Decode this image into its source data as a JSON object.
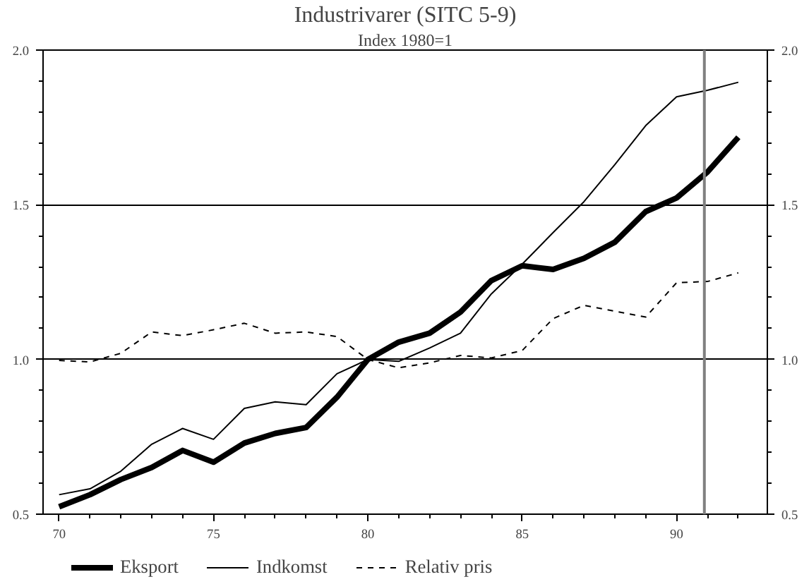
{
  "chart_data": {
    "type": "line",
    "title": "Industrivarer (SITC 5-9)",
    "subtitle": "Index 1980=1",
    "x": [
      70,
      71,
      72,
      73,
      74,
      75,
      76,
      77,
      78,
      79,
      80,
      81,
      82,
      83,
      84,
      85,
      86,
      87,
      88,
      89,
      90,
      91,
      92
    ],
    "xlim": [
      69.48,
      92.94
    ],
    "xticks": [
      70,
      75,
      80,
      85,
      90
    ],
    "ylim": [
      0.5,
      2.0
    ],
    "yticks": [
      {
        "value": 0.5,
        "label": "0.5"
      },
      {
        "value": 1.0,
        "label": "1.0"
      },
      {
        "value": 1.5,
        "label": "1.5"
      },
      {
        "value": 2.0,
        "label": "2.0"
      }
    ],
    "y2lim": [
      0.5,
      2.0
    ],
    "y2ticks": [
      {
        "value": 0.5,
        "label": "0.5"
      },
      {
        "value": 1.0,
        "label": "1.0"
      },
      {
        "value": 1.5,
        "label": "1.5"
      },
      {
        "value": 2.0,
        "label": "2.0"
      }
    ],
    "grid": "y",
    "legend": "bottom",
    "marker": "none",
    "ref_lines": [
      {
        "axis": "x",
        "value": 90.9,
        "color": "#808080"
      }
    ],
    "series": [
      {
        "name": "Eksport",
        "color": "#000000",
        "line_style": "solid",
        "values": [
          0.524,
          0.563,
          0.612,
          0.651,
          0.706,
          0.668,
          0.73,
          0.761,
          0.78,
          0.878,
          1.0,
          1.056,
          1.085,
          1.153,
          1.255,
          1.303,
          1.291,
          1.327,
          1.379,
          1.478,
          1.522,
          1.606,
          1.718
        ]
      },
      {
        "name": "Indkomst",
        "color": "#000000",
        "line_style": "solid",
        "values": [
          0.563,
          0.582,
          0.639,
          0.726,
          0.777,
          0.742,
          0.842,
          0.863,
          0.854,
          0.954,
          1.0,
          0.994,
          1.037,
          1.085,
          1.212,
          1.308,
          1.41,
          1.51,
          1.63,
          1.756,
          1.849,
          1.87,
          1.896
        ]
      },
      {
        "name": "Relativ pris",
        "color": "#000000",
        "line_style": "dashed",
        "values": [
          0.997,
          0.992,
          1.02,
          1.089,
          1.077,
          1.096,
          1.117,
          1.085,
          1.089,
          1.074,
          1.0,
          0.973,
          0.989,
          1.013,
          1.005,
          1.029,
          1.132,
          1.175,
          1.156,
          1.137,
          1.248,
          1.252,
          1.28
        ]
      }
    ]
  }
}
